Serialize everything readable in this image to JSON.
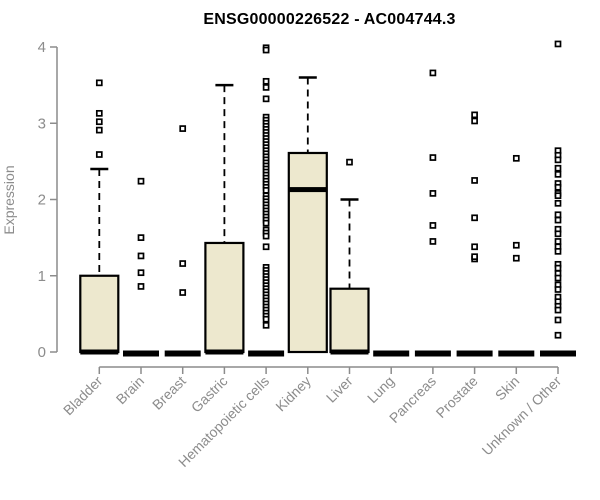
{
  "colors": {
    "box_fill": "#EDE8CE",
    "box_stroke": "#000000",
    "median_color": "#000000",
    "axis_color": "#8C8C8C",
    "title_color": "#000000",
    "outlier_fill": "#FFFFFF",
    "outlier_stroke": "#000000"
  },
  "chart_data": {
    "type": "boxplot",
    "title": "ENSG00000226522 - AC004744.3",
    "ylabel": "Expression",
    "xlabel": "",
    "ylim": [
      0,
      4
    ],
    "yticks": [
      0,
      1,
      2,
      3,
      4
    ],
    "grid": false,
    "legend": false,
    "categories": [
      "Bladder",
      "Brain",
      "Breast",
      "Gastric",
      "Hematopoietic cells",
      "Kidney",
      "Liver",
      "Lung",
      "Pancreas",
      "Prostate",
      "Skin",
      "Unknown / Other"
    ],
    "series": [
      {
        "category": "Bladder",
        "q1": 0,
        "median": 0,
        "q3": 1.0,
        "whisker_low": 0,
        "whisker_high": 2.4,
        "outliers": [
          2.59,
          2.91,
          3.02,
          3.13,
          3.53
        ]
      },
      {
        "category": "Brain",
        "q1": 0,
        "median": 0,
        "q3": 0,
        "whisker_low": 0,
        "whisker_high": 0,
        "outliers": [
          0.86,
          1.04,
          1.26,
          1.5,
          2.24
        ]
      },
      {
        "category": "Breast",
        "q1": 0,
        "median": 0,
        "q3": 0,
        "whisker_low": 0,
        "whisker_high": 0,
        "outliers": [
          0.78,
          1.16,
          2.93
        ]
      },
      {
        "category": "Gastric",
        "q1": 0,
        "median": 0,
        "q3": 1.43,
        "whisker_low": 0,
        "whisker_high": 3.5,
        "outliers": []
      },
      {
        "category": "Hematopoietic cells",
        "q1": 0,
        "median": 0,
        "q3": 0,
        "whisker_low": 0,
        "whisker_high": 0,
        "outliers": [
          3.99,
          3.96,
          3.55,
          3.47,
          3.32,
          3.08,
          3.04,
          3.0,
          2.96,
          2.92,
          2.88,
          2.84,
          2.8,
          2.76,
          2.72,
          2.68,
          2.64,
          2.6,
          2.56,
          2.52,
          2.48,
          2.44,
          2.4,
          2.36,
          2.32,
          2.28,
          2.24,
          2.2,
          2.16,
          2.12,
          2.05,
          2.01,
          1.97,
          1.93,
          1.89,
          1.85,
          1.81,
          1.77,
          1.73,
          1.69,
          1.6,
          1.56,
          1.52,
          1.38,
          1.11,
          1.07,
          1.03,
          0.99,
          0.95,
          0.91,
          0.87,
          0.83,
          0.79,
          0.75,
          0.71,
          0.67,
          0.63,
          0.59,
          0.55,
          0.51,
          0.47,
          0.43,
          0.35
        ]
      },
      {
        "category": "Kidney",
        "q1": 0,
        "median": 2.13,
        "q3": 2.61,
        "whisker_low": 0,
        "whisker_high": 3.6,
        "outliers": []
      },
      {
        "category": "Liver",
        "q1": 0,
        "median": 0,
        "q3": 0.83,
        "whisker_low": 0,
        "whisker_high": 2.0,
        "outliers": [
          2.49
        ]
      },
      {
        "category": "Lung",
        "q1": 0,
        "median": 0,
        "q3": 0,
        "whisker_low": 0,
        "whisker_high": 0,
        "outliers": []
      },
      {
        "category": "Pancreas",
        "q1": 0,
        "median": 0,
        "q3": 0,
        "whisker_low": 0,
        "whisker_high": 0,
        "outliers": [
          1.45,
          1.66,
          2.08,
          2.55,
          3.66
        ]
      },
      {
        "category": "Prostate",
        "q1": 0,
        "median": 0,
        "q3": 0,
        "whisker_low": 0,
        "whisker_high": 0,
        "outliers": [
          1.22,
          1.25,
          1.38,
          1.76,
          2.25,
          3.03,
          3.11
        ]
      },
      {
        "category": "Skin",
        "q1": 0,
        "median": 0,
        "q3": 0,
        "whisker_low": 0,
        "whisker_high": 0,
        "outliers": [
          1.23,
          1.4,
          2.54
        ]
      },
      {
        "category": "Unknown / Other",
        "q1": 0,
        "median": 0,
        "q3": 0,
        "whisker_low": 0,
        "whisker_high": 0,
        "outliers": [
          4.04,
          2.64,
          2.58,
          2.52,
          2.41,
          2.33,
          2.21,
          2.16,
          2.08,
          2.05,
          1.95,
          1.8,
          1.73,
          1.61,
          1.55,
          1.45,
          1.38,
          1.32,
          1.15,
          1.1,
          1.03,
          0.97,
          0.88,
          0.82,
          0.72,
          0.66,
          0.6,
          0.55,
          0.42,
          0.22
        ]
      }
    ]
  }
}
